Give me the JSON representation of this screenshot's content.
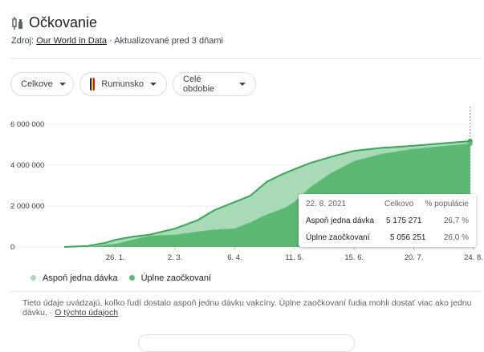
{
  "header": {
    "title": "Očkovanie",
    "source_label": "Zdroj:",
    "source_link": "Our World in Data",
    "updated": "· Aktualizované pred 3 dňami"
  },
  "filters": [
    {
      "label": "Celkove"
    },
    {
      "label": "Rumunsko"
    },
    {
      "label": "Celé obdobie"
    }
  ],
  "flag_colors": [
    "#002b7f",
    "#fcd116",
    "#ce1126"
  ],
  "colors": {
    "first": "#a8dab5",
    "full": "#5bb974",
    "line": "#34a853"
  },
  "chart_data": {
    "type": "area",
    "title": "Očkovanie",
    "ylim": [
      0,
      6000000
    ],
    "yticks": [
      0,
      2000000,
      4000000,
      6000000
    ],
    "ytick_labels": [
      "0",
      "2 000 000",
      "4 000 000",
      "6 000 000"
    ],
    "xrange": [
      "2020-12-27",
      "2021-08-24"
    ],
    "xticks": [
      "2021-01-26",
      "2021-03-02",
      "2021-04-06",
      "2021-05-11",
      "2021-06-15",
      "2021-07-20",
      "2021-08-24"
    ],
    "xtick_labels": [
      "26. 1.",
      "2. 3.",
      "6. 4.",
      "11. 5.",
      "15. 6.",
      "20. 7.",
      "24. 8."
    ],
    "x": [
      "2020-12-27",
      "2021-01-10",
      "2021-01-20",
      "2021-01-26",
      "2021-02-05",
      "2021-02-15",
      "2021-03-02",
      "2021-03-15",
      "2021-03-25",
      "2021-04-06",
      "2021-04-15",
      "2021-04-25",
      "2021-05-05",
      "2021-05-11",
      "2021-05-20",
      "2021-06-01",
      "2021-06-15",
      "2021-07-01",
      "2021-07-20",
      "2021-08-22"
    ],
    "series": [
      {
        "name": "Aspoň jedna dávka",
        "values": [
          0,
          50000,
          200000,
          350000,
          500000,
          600000,
          900000,
          1300000,
          1800000,
          2200000,
          2500000,
          3200000,
          3600000,
          3800000,
          4100000,
          4400000,
          4700000,
          4850000,
          4950000,
          5175271
        ]
      },
      {
        "name": "Úplne zaočkovaní",
        "values": [
          0,
          0,
          100000,
          150000,
          350000,
          550000,
          600000,
          750000,
          850000,
          900000,
          1200000,
          1600000,
          1900000,
          2200000,
          2900000,
          3600000,
          4200000,
          4550000,
          4800000,
          5056251
        ]
      }
    ],
    "legend": "bottom-left"
  },
  "tooltip": {
    "date": "22. 8. 2021",
    "col_total": "Celkovo",
    "col_pct": "% populácie",
    "rows": [
      {
        "label": "Aspoň jedna dávka",
        "total": "5 175 271",
        "pct": "26,7 %"
      },
      {
        "label": "Úplne zaočkovaní",
        "total": "5 056 251",
        "pct": "26,0 %"
      }
    ]
  },
  "legend": [
    "Aspoň jedna dávka",
    "Úplne zaočkovaní"
  ],
  "note": {
    "text": "Tieto údaje uvádzajú, koľko ľudí dostalo aspoň jednu dávku vakcíny. Úplne zaočkovaní ľudia mohli dostať viac ako jednu dávku.",
    "sep": " · ",
    "link": "O týchto údajoch"
  }
}
